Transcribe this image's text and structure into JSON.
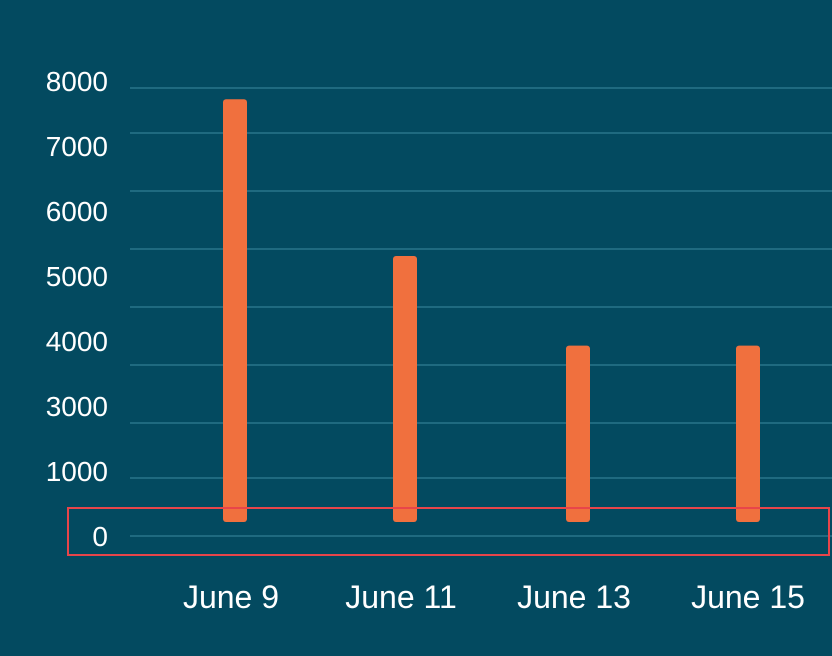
{
  "colors": {
    "background": "#034a60",
    "bar": "#f0703e",
    "grid": "#1f6a80",
    "text": "#ffffff",
    "highlight_box": "#e8454a"
  },
  "chart_data": {
    "type": "bar",
    "title": "",
    "xlabel": "",
    "ylabel": "",
    "categories": [
      "June 9",
      "June 11",
      "June 13",
      "June 15"
    ],
    "values": [
      7800,
      5000,
      3400,
      3400
    ],
    "y_tick_labels": [
      "0",
      "1000",
      "3000",
      "4000",
      "5000",
      "6000",
      "7000",
      "8000"
    ],
    "grid": true,
    "legend": "none",
    "highlight": {
      "target": "y-axis baseline row",
      "label": "0"
    }
  }
}
